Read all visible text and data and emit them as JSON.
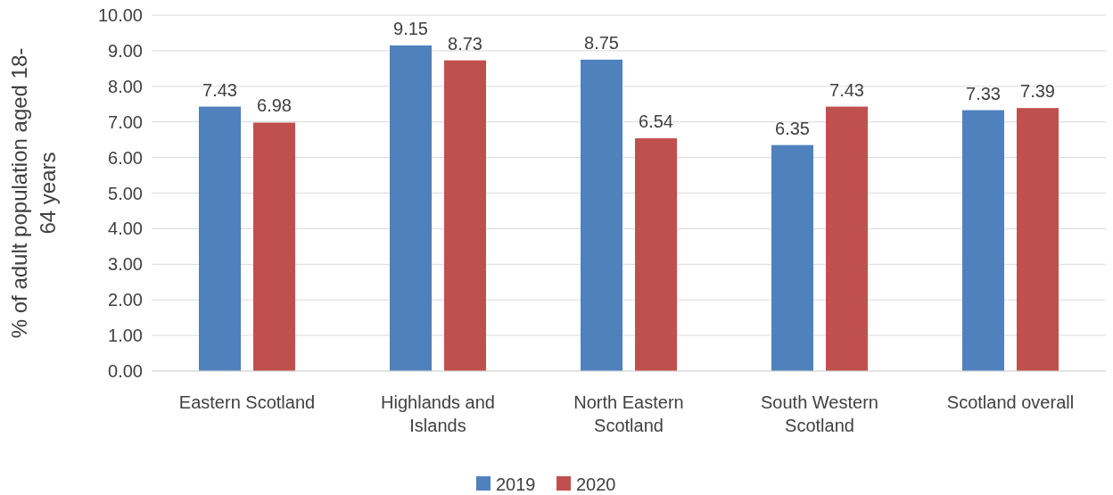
{
  "chart_data": {
    "type": "bar",
    "ylabel": "% of adult population aged 18-64 years",
    "categories": [
      "Eastern Scotland",
      "Highlands and Islands",
      "North Eastern Scotland",
      "South Western Scotland",
      "Scotland overall"
    ],
    "series": [
      {
        "name": "2019",
        "color": "#4f81bd",
        "values": [
          7.43,
          9.15,
          8.75,
          6.35,
          7.33
        ]
      },
      {
        "name": "2020",
        "color": "#c0504d",
        "values": [
          6.98,
          8.73,
          6.54,
          7.43,
          7.39
        ]
      }
    ],
    "ylim": [
      0,
      10
    ],
    "yticks": [
      {
        "value": 0,
        "label": "0.00"
      },
      {
        "value": 1,
        "label": "1.00"
      },
      {
        "value": 2,
        "label": "2.00"
      },
      {
        "value": 3,
        "label": "3.00"
      },
      {
        "value": 4,
        "label": "4.00"
      },
      {
        "value": 5,
        "label": "5.00"
      },
      {
        "value": 6,
        "label": "6.00"
      },
      {
        "value": 7,
        "label": "7.00"
      },
      {
        "value": 8,
        "label": "8.00"
      },
      {
        "value": 9,
        "label": "9.00"
      },
      {
        "value": 10,
        "label": "10.00"
      }
    ],
    "grid": "y",
    "legend": "bottom",
    "data_labels": true
  }
}
